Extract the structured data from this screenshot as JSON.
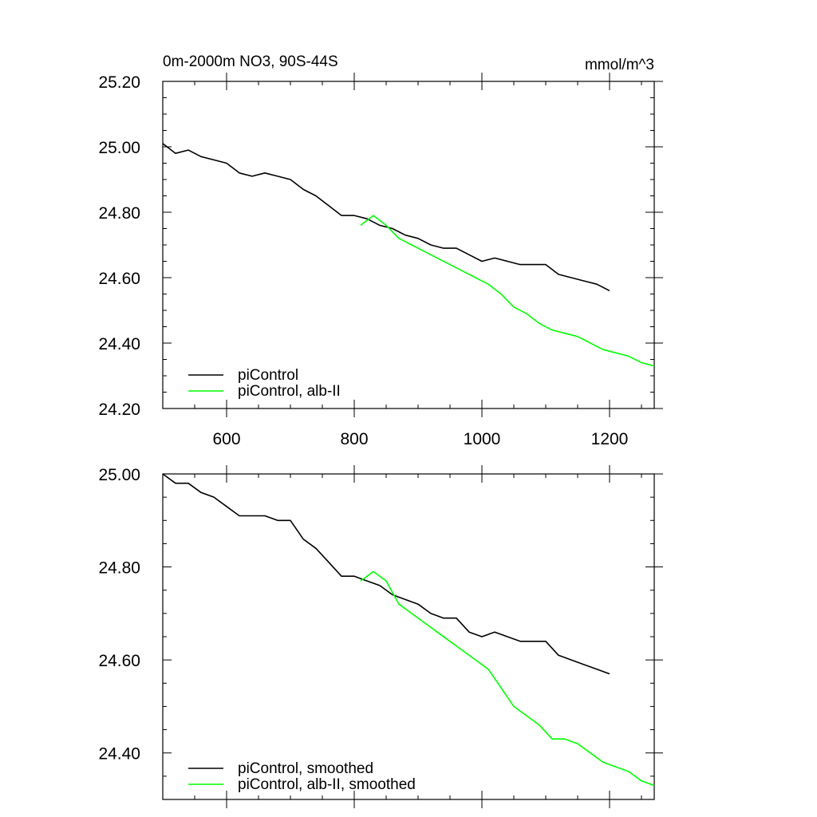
{
  "chart_data": [
    {
      "type": "line",
      "title_left": "0m-2000m NO3, 90S-44S",
      "title_right": "mmol/m^3",
      "xlim": [
        500,
        1270
      ],
      "ylim": [
        24.2,
        25.2
      ],
      "x_ticks": [
        600,
        800,
        1000,
        1200
      ],
      "x_tick_labels": [
        "600",
        "800",
        "1000",
        "1200"
      ],
      "y_ticks": [
        24.2,
        24.4,
        24.6,
        24.8,
        25.0,
        25.2
      ],
      "y_tick_labels": [
        "24.20",
        "24.40",
        "24.60",
        "24.80",
        "25.00",
        "25.20"
      ],
      "grid": false,
      "legend_position": "bottom-left",
      "series": [
        {
          "name": "piControl",
          "color": "#000000",
          "x": [
            500,
            520,
            540,
            560,
            580,
            600,
            620,
            640,
            660,
            680,
            700,
            720,
            740,
            760,
            780,
            800,
            820,
            840,
            860,
            880,
            900,
            920,
            940,
            960,
            980,
            1000,
            1020,
            1040,
            1060,
            1080,
            1100,
            1120,
            1140,
            1160,
            1180,
            1200
          ],
          "y": [
            25.01,
            24.98,
            24.99,
            24.97,
            24.96,
            24.95,
            24.92,
            24.91,
            24.92,
            24.91,
            24.9,
            24.87,
            24.85,
            24.82,
            24.79,
            24.79,
            24.78,
            24.76,
            24.75,
            24.73,
            24.72,
            24.7,
            24.69,
            24.69,
            24.67,
            24.65,
            24.66,
            24.65,
            24.64,
            24.64,
            24.64,
            24.61,
            24.6,
            24.59,
            24.58,
            24.56
          ]
        },
        {
          "name": "piControl, alb-II",
          "color": "#00ff00",
          "x": [
            810,
            830,
            850,
            870,
            890,
            910,
            930,
            950,
            970,
            990,
            1010,
            1030,
            1050,
            1070,
            1090,
            1110,
            1130,
            1150,
            1170,
            1190,
            1210,
            1230,
            1250,
            1270
          ],
          "y": [
            24.76,
            24.79,
            24.76,
            24.72,
            24.7,
            24.68,
            24.66,
            24.64,
            24.62,
            24.6,
            24.58,
            24.55,
            24.51,
            24.49,
            24.46,
            24.44,
            24.43,
            24.42,
            24.4,
            24.38,
            24.37,
            24.36,
            24.34,
            24.33
          ]
        }
      ]
    },
    {
      "type": "line",
      "xlim": [
        500,
        1270
      ],
      "ylim": [
        24.3,
        25.0
      ],
      "x_ticks": [
        600,
        800,
        1000,
        1200
      ],
      "y_ticks": [
        24.4,
        24.6,
        24.8,
        25.0
      ],
      "y_tick_labels": [
        "24.40",
        "24.60",
        "24.80",
        "25.00"
      ],
      "grid": false,
      "legend_position": "bottom-left",
      "series": [
        {
          "name": "piControl, smoothed",
          "color": "#000000",
          "x": [
            500,
            520,
            540,
            560,
            580,
            600,
            620,
            640,
            660,
            680,
            700,
            720,
            740,
            760,
            780,
            800,
            820,
            840,
            860,
            880,
            900,
            920,
            940,
            960,
            980,
            1000,
            1020,
            1040,
            1060,
            1080,
            1100,
            1120,
            1140,
            1160,
            1180,
            1200
          ],
          "y": [
            25.0,
            24.98,
            24.98,
            24.96,
            24.95,
            24.93,
            24.91,
            24.91,
            24.91,
            24.9,
            24.9,
            24.86,
            24.84,
            24.81,
            24.78,
            24.78,
            24.77,
            24.76,
            24.74,
            24.73,
            24.72,
            24.7,
            24.69,
            24.69,
            24.66,
            24.65,
            24.66,
            24.65,
            24.64,
            24.64,
            24.64,
            24.61,
            24.6,
            24.59,
            24.58,
            24.57
          ]
        },
        {
          "name": "piControl, alb-II, smoothed",
          "color": "#00ff00",
          "x": [
            810,
            830,
            850,
            870,
            890,
            910,
            930,
            950,
            970,
            990,
            1010,
            1030,
            1050,
            1070,
            1090,
            1110,
            1130,
            1150,
            1170,
            1190,
            1210,
            1230,
            1250,
            1270
          ],
          "y": [
            24.77,
            24.79,
            24.77,
            24.72,
            24.7,
            24.68,
            24.66,
            24.64,
            24.62,
            24.6,
            24.58,
            24.54,
            24.5,
            24.48,
            24.46,
            24.43,
            24.43,
            24.42,
            24.4,
            24.38,
            24.37,
            24.36,
            24.34,
            24.33
          ]
        }
      ]
    }
  ]
}
